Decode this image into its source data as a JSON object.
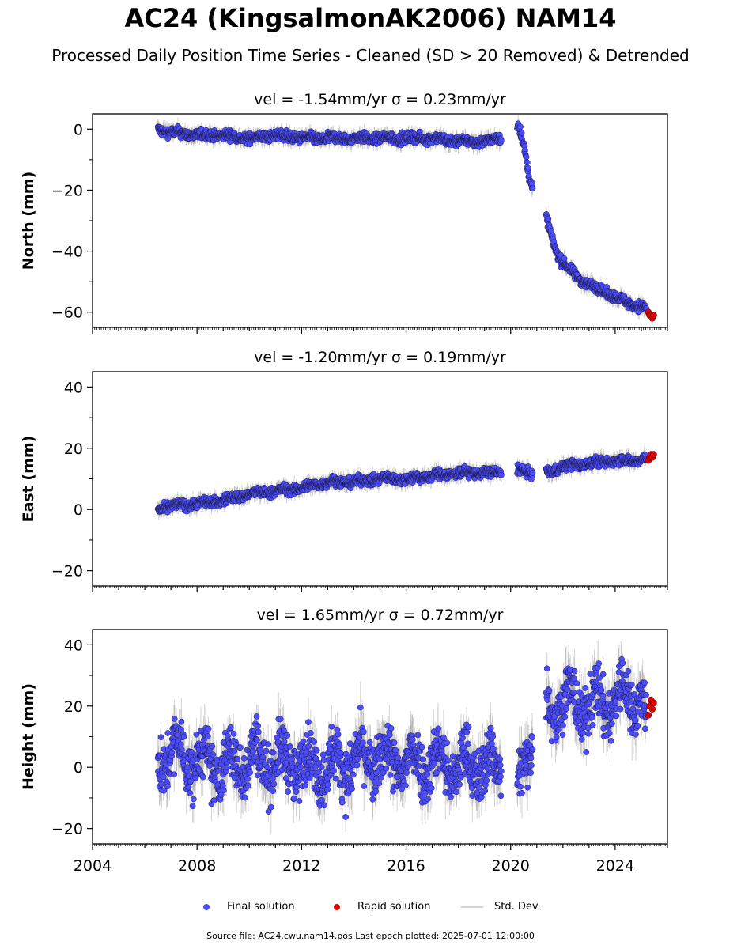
{
  "title": "AC24 (KingsalmonAK2006) NAM14",
  "subtitle": "Processed Daily Position Time Series - Cleaned (SD > 20 Removed) & Detrended",
  "legend": {
    "final": "Final solution",
    "rapid": "Rapid solution",
    "std": "Std. Dev."
  },
  "footer": "Source file: AC24.cwu.nam14.pos  Last epoch plotted: 2025-07-01 12:00:00",
  "colors": {
    "final": "#4b4bff",
    "rapid": "#e00000",
    "std": "#808080"
  },
  "chart_data": [
    {
      "type": "scatter",
      "title": "vel = -1.54mm/yr   σ = 0.23mm/yr",
      "ylabel": "North (mm)",
      "xlim": [
        2004.0,
        2026.0
      ],
      "ylim": [
        -65,
        5
      ],
      "yticks": [
        0,
        -20,
        -40,
        -60
      ],
      "ytick_labels": [
        "0",
        "−20",
        "−40",
        "−60"
      ],
      "series": [
        {
          "name": "Final solution",
          "x": [
            2006.5,
            2007.0,
            2008.0,
            2009.0,
            2010.0,
            2011.0,
            2012.0,
            2013.0,
            2014.0,
            2015.0,
            2016.0,
            2017.0,
            2018.0,
            2019.0,
            2019.6,
            2020.3,
            2020.5,
            2020.7,
            2020.8,
            2021.4,
            2021.6,
            2021.8,
            2022.0,
            2022.5,
            2023.0,
            2023.5,
            2024.0,
            2024.5,
            2025.0,
            2025.2
          ],
          "y": [
            0,
            -1,
            -2,
            -2,
            -3,
            -2,
            -3,
            -3,
            -3,
            -3,
            -3,
            -3,
            -4,
            -4,
            -3,
            1,
            -5,
            -15,
            -18,
            -30,
            -36,
            -41,
            -44,
            -48,
            -51,
            -53,
            -55,
            -57,
            -58,
            -59
          ]
        },
        {
          "name": "Rapid solution",
          "x": [
            2025.3,
            2025.35,
            2025.4,
            2025.45,
            2025.5
          ],
          "y": [
            -60,
            -61,
            -61,
            -62,
            -61
          ]
        }
      ]
    },
    {
      "type": "scatter",
      "title": "vel = -1.20mm/yr   σ = 0.19mm/yr",
      "ylabel": "East (mm)",
      "xlim": [
        2004.0,
        2026.0
      ],
      "ylim": [
        -25,
        45
      ],
      "yticks": [
        40,
        20,
        0,
        -20
      ],
      "ytick_labels": [
        "40",
        "20",
        "0",
        "−20"
      ],
      "series": [
        {
          "name": "Final solution",
          "x": [
            2006.5,
            2007.0,
            2008.0,
            2009.0,
            2010.0,
            2011.0,
            2012.0,
            2013.0,
            2014.0,
            2015.0,
            2016.0,
            2017.0,
            2018.0,
            2019.0,
            2019.6,
            2020.3,
            2020.8,
            2021.4,
            2022.0,
            2023.0,
            2024.0,
            2025.0,
            2025.2
          ],
          "y": [
            0,
            1,
            2,
            3,
            5,
            6,
            7,
            9,
            9,
            10,
            10,
            11,
            12,
            12,
            12,
            13,
            12,
            12,
            14,
            15,
            16,
            16,
            17
          ]
        },
        {
          "name": "Rapid solution",
          "x": [
            2025.3,
            2025.35,
            2025.4,
            2025.45,
            2025.5
          ],
          "y": [
            16,
            17,
            18,
            17,
            18
          ]
        }
      ]
    },
    {
      "type": "scatter",
      "title": "vel = 1.65mm/yr   σ = 0.72mm/yr",
      "ylabel": "Height (mm)",
      "xlim": [
        2004.0,
        2026.0
      ],
      "ylim": [
        -25,
        45
      ],
      "yticks": [
        40,
        20,
        0,
        -20
      ],
      "ytick_labels": [
        "40",
        "20",
        "0",
        "−20"
      ],
      "xticks": [
        2004,
        2008,
        2012,
        2016,
        2020,
        2024
      ],
      "xtick_labels": [
        "2004",
        "2008",
        "2012",
        "2016",
        "2020",
        "2024"
      ],
      "series": [
        {
          "name": "Final solution",
          "x": [
            2006.5,
            2007.0,
            2008.0,
            2009.0,
            2010.0,
            2011.0,
            2012.0,
            2013.0,
            2014.0,
            2015.0,
            2016.0,
            2017.0,
            2018.0,
            2019.0,
            2019.6,
            2020.3,
            2020.6,
            2020.8,
            2021.4,
            2022.0,
            2023.0,
            2024.0,
            2025.0,
            2025.2
          ],
          "y": [
            2,
            5,
            2,
            0,
            3,
            2,
            1,
            0,
            2,
            3,
            1,
            2,
            0,
            1,
            0,
            -8,
            5,
            12,
            20,
            22,
            20,
            22,
            24,
            15
          ]
        },
        {
          "name": "Rapid solution",
          "x": [
            2025.3,
            2025.35,
            2025.4,
            2025.45,
            2025.5
          ],
          "y": [
            17,
            20,
            22,
            19,
            21
          ]
        }
      ]
    }
  ]
}
